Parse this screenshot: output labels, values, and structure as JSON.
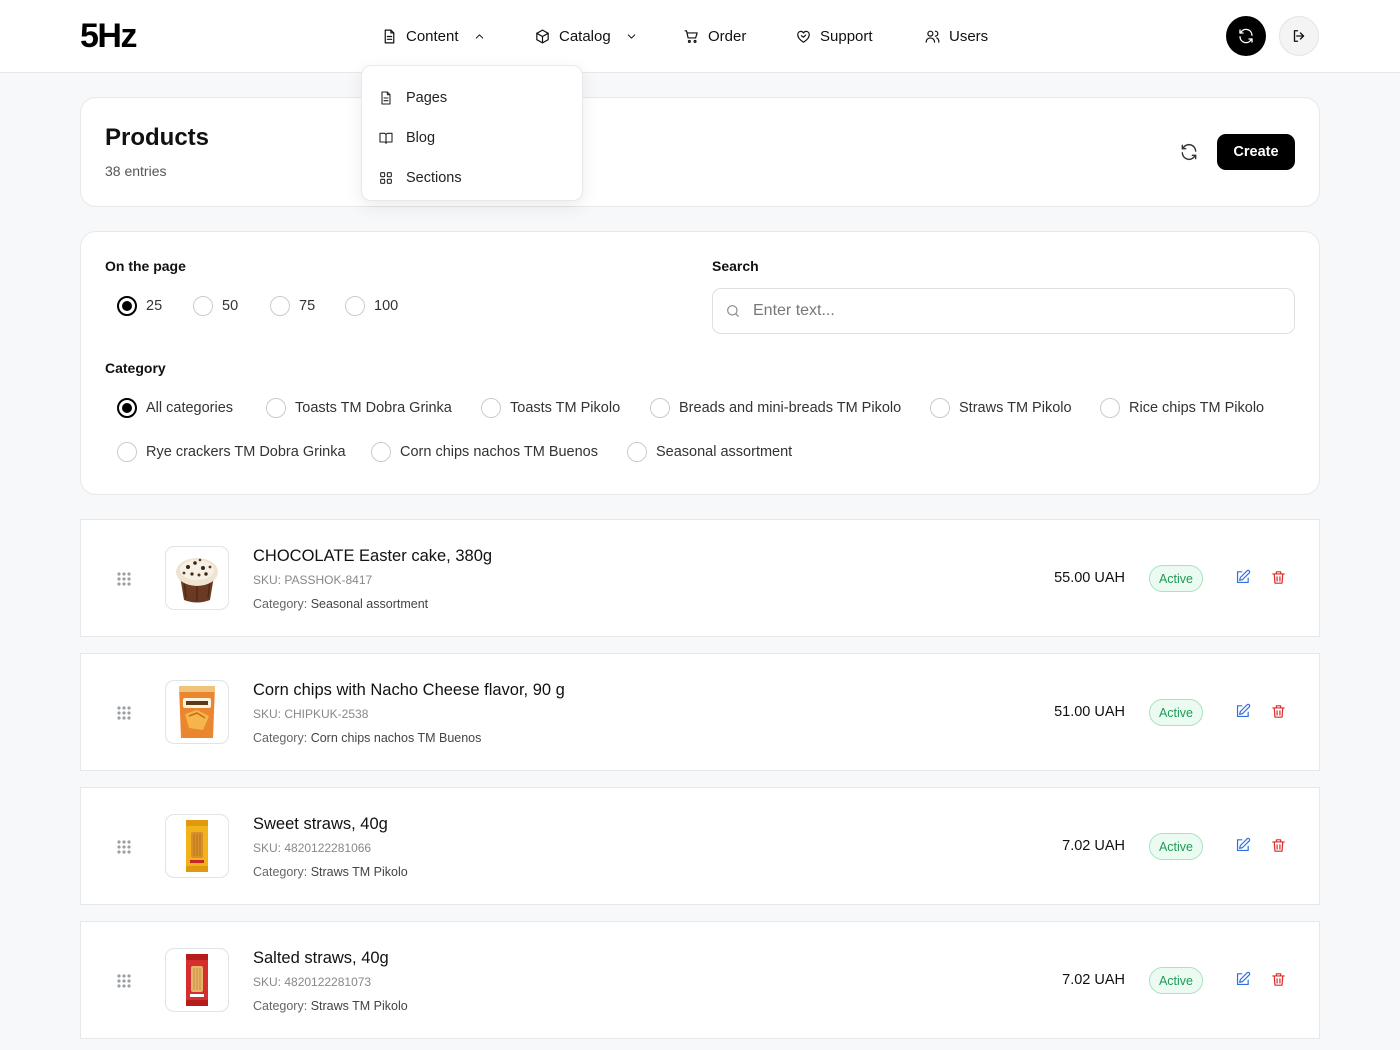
{
  "app": {
    "logo": "5Hz"
  },
  "nav": {
    "content": "Content",
    "catalog": "Catalog",
    "order": "Order",
    "support": "Support",
    "users": "Users"
  },
  "dropdown": {
    "items": [
      {
        "label": "Pages",
        "icon": "file-icon"
      },
      {
        "label": "Blog",
        "icon": "book-open-icon"
      },
      {
        "label": "Sections",
        "icon": "grid-icon"
      }
    ]
  },
  "page": {
    "title": "Products",
    "subtitle": "38 entries",
    "create_label": "Create"
  },
  "filters": {
    "per_page_label": "On the page",
    "per_page_options": [
      "25",
      "50",
      "75",
      "100"
    ],
    "per_page_selected": "25",
    "search_label": "Search",
    "search_placeholder": "Enter text...",
    "category_label": "Category",
    "categories": [
      "All categories",
      "Toasts TM Dobra Grinka",
      "Toasts TM Pikolo",
      "Breads and mini-breads TM Pikolo",
      "Straws TM Pikolo",
      "Rice chips TM Pikolo",
      "Rye crackers TM Dobra Grinka",
      "Corn chips nachos TM Buenos",
      "Seasonal assortment"
    ],
    "category_selected": "All categories"
  },
  "products": [
    {
      "name": "CHOCOLATE Easter cake, 380g",
      "sku": "SKU: PASSHOK-8417",
      "category_key": "Category:",
      "category": "Seasonal assortment",
      "price": "55.00 UAH",
      "status": "Active",
      "thumb": "easter-cake"
    },
    {
      "name": "Corn chips with Nacho Cheese flavor, 90 g",
      "sku": "SKU: CHIPKUK-2538",
      "category_key": "Category:",
      "category": "Corn chips nachos TM Buenos",
      "price": "51.00 UAH",
      "status": "Active",
      "thumb": "nacho-bag"
    },
    {
      "name": "Sweet straws, 40g",
      "sku": "SKU: 4820122281066",
      "category_key": "Category:",
      "category": "Straws TM Pikolo",
      "price": "7.02 UAH",
      "status": "Active",
      "thumb": "sweet-straws"
    },
    {
      "name": "Salted straws, 40g",
      "sku": "SKU: 4820122281073",
      "category_key": "Category:",
      "category": "Straws TM Pikolo",
      "price": "7.02 UAH",
      "status": "Active",
      "thumb": "salted-straws"
    }
  ],
  "colors": {
    "accent": "#000000",
    "status_active": "#1f9a55",
    "edit": "#2f6fe0",
    "delete": "#d92d2d"
  }
}
